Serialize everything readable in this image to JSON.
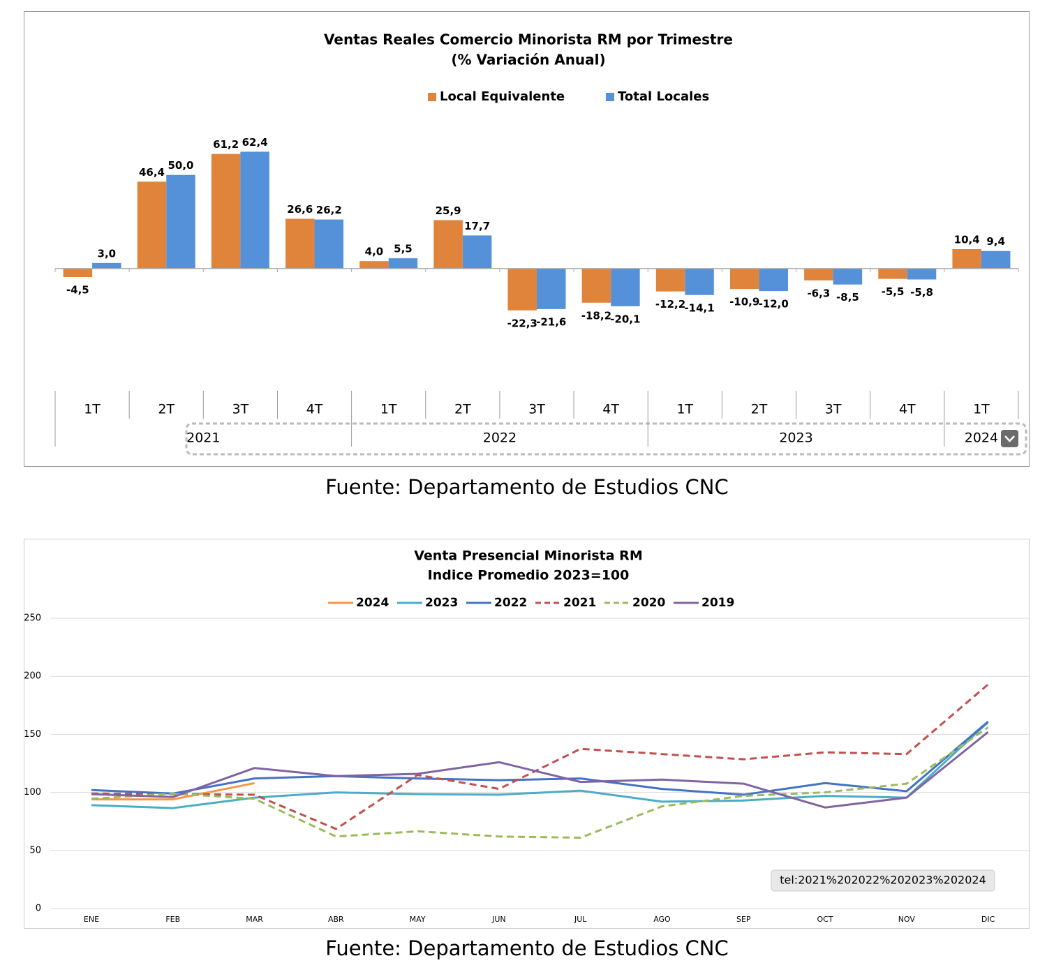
{
  "chart_data": [
    {
      "type": "bar",
      "title": "Ventas Reales Comercio Minorista RM por Trimestre",
      "subtitle": "(% Variación Anual)",
      "categories": [
        "1T",
        "2T",
        "3T",
        "4T",
        "1T",
        "2T",
        "3T",
        "4T",
        "1T",
        "2T",
        "3T",
        "4T",
        "1T"
      ],
      "category_groups": [
        {
          "name": "2021",
          "count": 4
        },
        {
          "name": "2022",
          "count": 4
        },
        {
          "name": "2023",
          "count": 4
        },
        {
          "name": "2024",
          "count": 1
        }
      ],
      "series": [
        {
          "name": "Local Equivalente",
          "color": "#e0843c",
          "values": [
            -4.5,
            46.4,
            61.2,
            26.6,
            4.0,
            25.9,
            -22.3,
            -18.2,
            -12.2,
            -10.9,
            -6.3,
            -5.5,
            10.4
          ],
          "value_labels": [
            "-4,5",
            "46,4",
            "61,2",
            "26,6",
            "4,0",
            "25,9",
            "-22,3",
            "-18,2",
            "-12,2",
            "-10,9",
            "-6,3",
            "-5,5",
            "10,4"
          ]
        },
        {
          "name": "Total Locales",
          "color": "#5591d8",
          "values": [
            3.0,
            50.0,
            62.4,
            26.2,
            5.5,
            17.7,
            -21.6,
            -20.1,
            -14.1,
            -12.0,
            -8.5,
            -5.8,
            9.4
          ],
          "value_labels": [
            "3,0",
            "50,0",
            "62,4",
            "26,2",
            "5,5",
            "17,7",
            "-21,6",
            "-20,1",
            "-14,1",
            "-12,0",
            "-8,5",
            "-5,8",
            "9,4"
          ]
        }
      ],
      "ylim": [
        -60,
        70
      ],
      "source": "Fuente: Departamento de Estudios CNC"
    },
    {
      "type": "line",
      "title": "Venta Presencial Minorista RM",
      "subtitle": "Indice Promedio 2023=100",
      "categories": [
        "ENE",
        "FEB",
        "MAR",
        "ABR",
        "MAY",
        "JUN",
        "JUL",
        "AGO",
        "SEP",
        "OCT",
        "NOV",
        "DIC"
      ],
      "series": [
        {
          "name": "2024",
          "color": "#f79646",
          "dash": false,
          "values": [
            94,
            94,
            108,
            null,
            null,
            null,
            null,
            null,
            null,
            null,
            null,
            null
          ]
        },
        {
          "name": "2023",
          "color": "#4bacc6",
          "dash": false,
          "values": [
            89,
            86.5,
            95.5,
            100,
            98.5,
            98,
            101.5,
            92,
            93,
            97,
            95.5,
            160.5
          ]
        },
        {
          "name": "2022",
          "color": "#4472c4",
          "dash": false,
          "values": [
            102,
            99,
            112,
            114,
            112,
            110.5,
            112,
            103,
            98,
            108,
            101,
            161
          ]
        },
        {
          "name": "2021",
          "color": "#c0504d",
          "dash": true,
          "values": [
            99,
            98.5,
            98,
            68.5,
            115,
            103,
            137.5,
            133,
            128.5,
            134.5,
            133,
            193
          ]
        },
        {
          "name": "2020",
          "color": "#9bbb59",
          "dash": true,
          "values": [
            94.5,
            99,
            94.5,
            62,
            66.5,
            62,
            61,
            88,
            97,
            100,
            107.5,
            156
          ]
        },
        {
          "name": "2019",
          "color": "#8064a2",
          "dash": false,
          "values": [
            98.5,
            96,
            121,
            114,
            116,
            126,
            109,
            111,
            107.5,
            87,
            95.5,
            152
          ]
        }
      ],
      "ylim": [
        0,
        250
      ],
      "yticks": [
        0,
        50,
        100,
        150,
        200,
        250
      ],
      "grid": true,
      "overlay_text": "tel:2021%202022%202023%202024",
      "source": "Fuente: Departamento de Estudios CNC"
    }
  ]
}
